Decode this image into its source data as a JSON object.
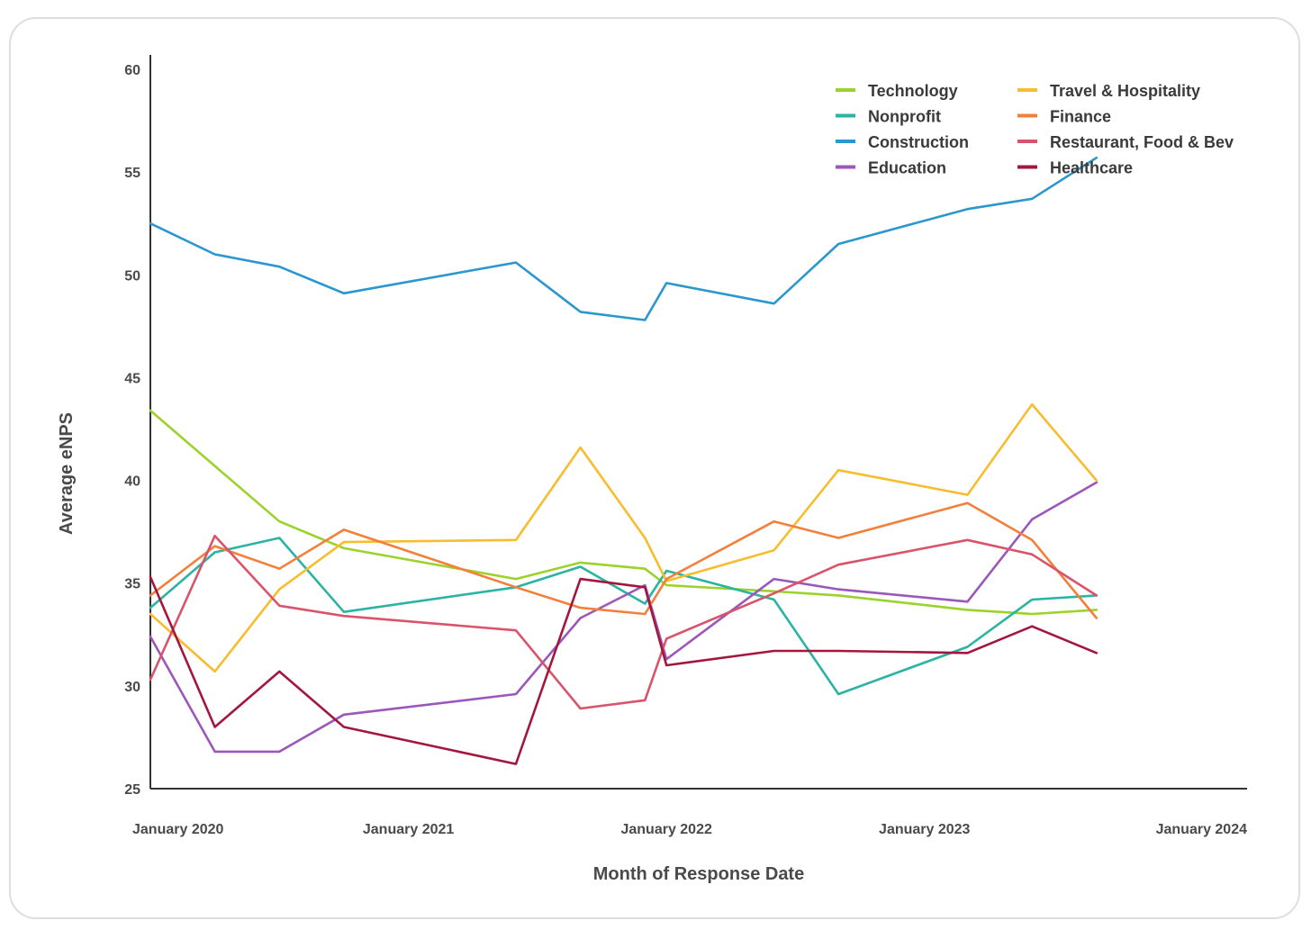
{
  "chart_data": {
    "type": "line",
    "title": "",
    "xlabel": "Month of Response Date",
    "ylabel": "Average eNPS",
    "ylim": [
      25,
      60
    ],
    "yticks": [
      60,
      55,
      50,
      45,
      40,
      35,
      30,
      25
    ],
    "xlim": [
      "2020-01",
      "2024-04"
    ],
    "xticks": [
      {
        "date": "2020-01",
        "label": "January 2020"
      },
      {
        "date": "2021-01",
        "label": "January 2021"
      },
      {
        "date": "2022-01",
        "label": "January 2022"
      },
      {
        "date": "2023-01",
        "label": "January 2023"
      },
      {
        "date": "2024-01",
        "label": "January 2024"
      }
    ],
    "grid": false,
    "legend_position": "top-right",
    "series": [
      {
        "name": "Technology",
        "color": "#9bd22c",
        "points": [
          [
            "2020-01",
            43.4
          ],
          [
            "2020-04",
            40.7
          ],
          [
            "2020-07",
            38.0
          ],
          [
            "2020-10",
            36.7
          ],
          [
            "2021-06",
            35.2
          ],
          [
            "2021-09",
            36.0
          ],
          [
            "2021-12",
            35.7
          ],
          [
            "2022-01",
            34.9
          ],
          [
            "2022-06",
            34.6
          ],
          [
            "2022-09",
            34.4
          ],
          [
            "2023-03",
            33.7
          ],
          [
            "2023-06",
            33.5
          ],
          [
            "2023-09",
            33.7
          ]
        ]
      },
      {
        "name": "Nonprofit",
        "color": "#2bb3a3",
        "points": [
          [
            "2020-01",
            33.8
          ],
          [
            "2020-04",
            36.5
          ],
          [
            "2020-07",
            37.2
          ],
          [
            "2020-10",
            33.6
          ],
          [
            "2021-06",
            34.8
          ],
          [
            "2021-09",
            35.8
          ],
          [
            "2021-12",
            34.0
          ],
          [
            "2022-01",
            35.6
          ],
          [
            "2022-06",
            34.2
          ],
          [
            "2022-09",
            29.6
          ],
          [
            "2023-03",
            31.9
          ],
          [
            "2023-06",
            34.2
          ],
          [
            "2023-09",
            34.4
          ]
        ]
      },
      {
        "name": "Construction",
        "color": "#2b97cf",
        "points": [
          [
            "2020-01",
            52.5
          ],
          [
            "2020-04",
            51.0
          ],
          [
            "2020-07",
            50.4
          ],
          [
            "2020-10",
            49.1
          ],
          [
            "2021-06",
            50.6
          ],
          [
            "2021-09",
            48.2
          ],
          [
            "2021-12",
            47.8
          ],
          [
            "2022-01",
            49.6
          ],
          [
            "2022-06",
            48.6
          ],
          [
            "2022-09",
            51.5
          ],
          [
            "2023-03",
            53.2
          ],
          [
            "2023-06",
            53.7
          ],
          [
            "2023-09",
            55.7
          ]
        ]
      },
      {
        "name": "Education",
        "color": "#9b57b9",
        "points": [
          [
            "2020-01",
            32.4
          ],
          [
            "2020-04",
            26.8
          ],
          [
            "2020-07",
            26.8
          ],
          [
            "2020-10",
            28.6
          ],
          [
            "2021-06",
            29.6
          ],
          [
            "2021-09",
            33.3
          ],
          [
            "2021-12",
            34.9
          ],
          [
            "2022-01",
            31.3
          ],
          [
            "2022-06",
            35.2
          ],
          [
            "2022-09",
            34.7
          ],
          [
            "2023-03",
            34.1
          ],
          [
            "2023-06",
            38.1
          ],
          [
            "2023-09",
            39.9
          ]
        ]
      },
      {
        "name": "Travel & Hospitality",
        "color": "#f7bd2f",
        "points": [
          [
            "2020-01",
            33.5
          ],
          [
            "2020-04",
            30.7
          ],
          [
            "2020-07",
            34.7
          ],
          [
            "2020-10",
            37.0
          ],
          [
            "2021-06",
            37.1
          ],
          [
            "2021-09",
            41.6
          ],
          [
            "2021-12",
            37.2
          ],
          [
            "2022-01",
            35.1
          ],
          [
            "2022-06",
            36.6
          ],
          [
            "2022-09",
            40.5
          ],
          [
            "2023-03",
            39.3
          ],
          [
            "2023-06",
            43.7
          ],
          [
            "2023-09",
            40.0
          ]
        ]
      },
      {
        "name": "Finance",
        "color": "#f47f3a",
        "points": [
          [
            "2020-01",
            34.4
          ],
          [
            "2020-04",
            36.8
          ],
          [
            "2020-07",
            35.7
          ],
          [
            "2020-10",
            37.6
          ],
          [
            "2021-06",
            34.8
          ],
          [
            "2021-09",
            33.8
          ],
          [
            "2021-12",
            33.5
          ],
          [
            "2022-01",
            35.2
          ],
          [
            "2022-06",
            38.0
          ],
          [
            "2022-09",
            37.2
          ],
          [
            "2023-03",
            38.9
          ],
          [
            "2023-06",
            37.1
          ],
          [
            "2023-09",
            33.3
          ]
        ]
      },
      {
        "name": "Restaurant, Food & Bev",
        "color": "#d9546a",
        "points": [
          [
            "2020-01",
            30.3
          ],
          [
            "2020-04",
            37.3
          ],
          [
            "2020-07",
            33.9
          ],
          [
            "2020-10",
            33.4
          ],
          [
            "2021-06",
            32.7
          ],
          [
            "2021-09",
            28.9
          ],
          [
            "2021-12",
            29.3
          ],
          [
            "2022-01",
            32.3
          ],
          [
            "2022-06",
            34.5
          ],
          [
            "2022-09",
            35.9
          ],
          [
            "2023-03",
            37.1
          ],
          [
            "2023-06",
            36.4
          ],
          [
            "2023-09",
            34.4
          ]
        ]
      },
      {
        "name": "Healthcare",
        "color": "#a3173e",
        "points": [
          [
            "2020-01",
            35.3
          ],
          [
            "2020-04",
            28.0
          ],
          [
            "2020-07",
            30.7
          ],
          [
            "2020-10",
            28.0
          ],
          [
            "2021-06",
            26.2
          ],
          [
            "2021-09",
            35.2
          ],
          [
            "2021-12",
            34.8
          ],
          [
            "2022-01",
            31.0
          ],
          [
            "2022-06",
            31.7
          ],
          [
            "2022-09",
            31.7
          ],
          [
            "2023-03",
            31.6
          ],
          [
            "2023-06",
            32.9
          ],
          [
            "2023-09",
            31.6
          ]
        ]
      }
    ]
  }
}
